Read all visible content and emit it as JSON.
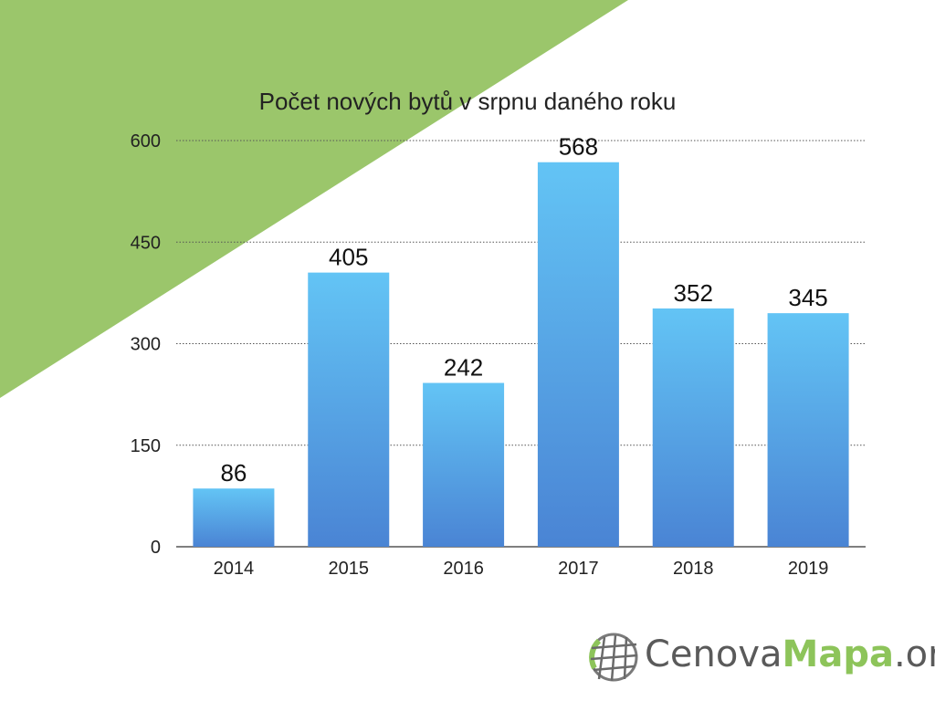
{
  "theme": {
    "triangle_color": "#9bc66b",
    "bar_top_color": "#63c4f5",
    "bar_bottom_color": "#4a84d4",
    "grid_color": "#555555",
    "text_color": "#222222"
  },
  "chart_data": {
    "type": "bar",
    "title": "Počet nových bytů v srpnu daného roku",
    "categories": [
      "2014",
      "2015",
      "2016",
      "2017",
      "2018",
      "2019"
    ],
    "values": [
      86,
      405,
      242,
      568,
      352,
      345
    ],
    "data_labels": [
      "86",
      "405",
      "242",
      "568",
      "352",
      "345"
    ],
    "yticks": [
      "0",
      "150",
      "300",
      "450",
      "600"
    ],
    "ylim": [
      0,
      600
    ],
    "xlabel": "",
    "ylabel": "",
    "grid": true,
    "grid_style": "dotted"
  },
  "logo": {
    "part1": "Cenova",
    "part2": "Mapa",
    "part3": ".org",
    "icon": "globe-grid-icon"
  }
}
